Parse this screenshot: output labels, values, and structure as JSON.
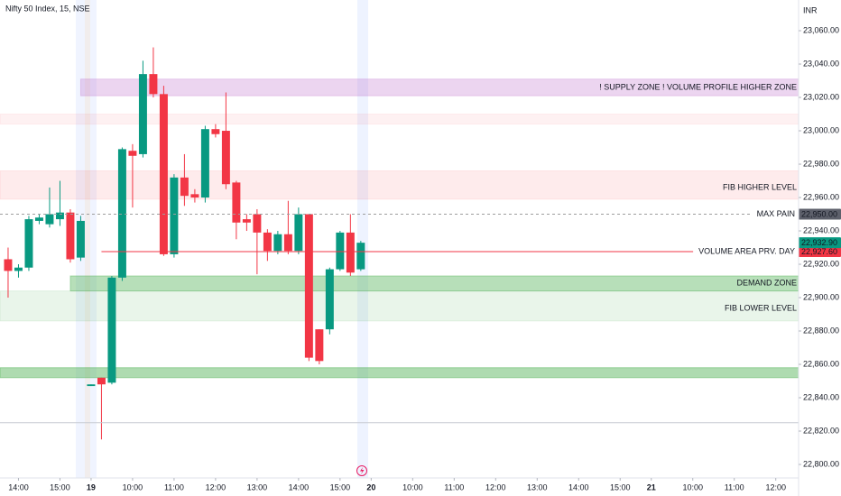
{
  "chart_data": {
    "type": "candlestick",
    "title": "Nifty 50 Index, 15, NSE",
    "currency": "INR",
    "up_color": "#089981",
    "down_color": "#f23645",
    "xlim": [
      -1.78,
      75.2
    ],
    "ylim": [
      22791.9,
      23078.4
    ],
    "xticks": [
      {
        "value": 0,
        "label": "14:00"
      },
      {
        "value": 4,
        "label": "15:00"
      },
      {
        "value": 7,
        "label": "19"
      },
      {
        "value": 11,
        "label": "10:00"
      },
      {
        "value": 15,
        "label": "11:00"
      },
      {
        "value": 19,
        "label": "12:00"
      },
      {
        "value": 23,
        "label": "13:00"
      },
      {
        "value": 27,
        "label": "14:00"
      },
      {
        "value": 31,
        "label": "15:00"
      },
      {
        "value": 34,
        "label": "20"
      },
      {
        "value": 38,
        "label": "10:00"
      },
      {
        "value": 42,
        "label": "11:00"
      },
      {
        "value": 46,
        "label": "12:00"
      },
      {
        "value": 50,
        "label": "13:00"
      },
      {
        "value": 54,
        "label": "14:00"
      },
      {
        "value": 58,
        "label": "15:00"
      },
      {
        "value": 61,
        "label": "21"
      },
      {
        "value": 65,
        "label": "10:00"
      },
      {
        "value": 69,
        "label": "11:00"
      },
      {
        "value": 73,
        "label": "12:00"
      }
    ],
    "yticks": [
      {
        "value": 22800,
        "label": "22,800.00"
      },
      {
        "value": 22820,
        "label": "22,820.00"
      },
      {
        "value": 22840,
        "label": "22,840.00"
      },
      {
        "value": 22860,
        "label": "22,860.00"
      },
      {
        "value": 22880,
        "label": "22,880.00"
      },
      {
        "value": 22900,
        "label": "22,900.00"
      },
      {
        "value": 22920,
        "label": "22,920.00"
      },
      {
        "value": 22940,
        "label": "22,940.00"
      },
      {
        "value": 22960,
        "label": "22,960.00"
      },
      {
        "value": 22980,
        "label": "22,980.00"
      },
      {
        "value": 23000,
        "label": "23,000.00"
      },
      {
        "value": 23020,
        "label": "23,020.00"
      },
      {
        "value": 23040,
        "label": "23,040.00"
      },
      {
        "value": 23060,
        "label": "23,060.00"
      }
    ],
    "x": [
      -1,
      0,
      1,
      2,
      3,
      4,
      5,
      6,
      7,
      8,
      9,
      10,
      11,
      12,
      13,
      14,
      15,
      16,
      17,
      18,
      19,
      20,
      21,
      22,
      23,
      24,
      25,
      26,
      27,
      28,
      29,
      30,
      31,
      32,
      33
    ],
    "open": [
      22923,
      22916,
      22918,
      22946,
      22944,
      22947,
      22951,
      22924,
      22847,
      22852,
      22849,
      22912,
      22988,
      22986,
      23034,
      23022,
      22926,
      22972,
      22962,
      22960,
      23001,
      23000,
      22969,
      22947,
      22950,
      22939,
      22928,
      22938,
      22928,
      22950,
      22881,
      22881,
      22917,
      22939,
      22917
    ],
    "high": [
      22930,
      22920,
      22949,
      22950,
      22966,
      22970,
      22953,
      22949,
      22848,
      22852,
      22913,
      22990,
      22992,
      23042,
      23050,
      23027,
      22974,
      22986,
      22965,
      23003,
      23004,
      23023,
      22970,
      22950,
      22953,
      22941,
      22940,
      22958,
      22954,
      22950,
      22881,
      22918,
      22940,
      22950,
      22934
    ],
    "low": [
      22900,
      22912,
      22916,
      22944,
      22942,
      22943,
      22921,
      22922,
      22847,
      22815,
      22848,
      22910,
      22954,
      22984,
      23020,
      22925,
      22924,
      22955,
      22957,
      22957,
      22996,
      22965,
      22935,
      22940,
      22914,
      22922,
      22926,
      22926,
      22926,
      22862,
      22860,
      22878,
      22916,
      22913,
      22916
    ],
    "close": [
      22916,
      22918,
      22947,
      22948,
      22950,
      22951,
      22923,
      22946,
      22848,
      22848,
      22912,
      22989,
      22985,
      23034,
      23022,
      22926,
      22972,
      22961,
      22960,
      23001,
      22998,
      22968,
      22945,
      22945,
      22939,
      22928,
      22938,
      22928,
      22950,
      22864,
      22862,
      22917,
      22939,
      22915,
      22932.9
    ],
    "last_price": {
      "value": 22932.9,
      "label": "22,932.90"
    },
    "zones": [
      {
        "label": "! SUPPLY ZONE ! VOLUME PROFILE HIGHER ZONE",
        "from": 23021,
        "to": 23031,
        "x_start": 6,
        "color": "rgba(186,104,200,0.28)",
        "label_color": "#f23645"
      },
      {
        "from": 23004,
        "to": 23010,
        "x_start": -1.78,
        "color": "rgba(242,54,69,0.07)",
        "label_color": "#131722"
      },
      {
        "label": "FIB HIGHER LEVEL",
        "from": 22959,
        "to": 22976,
        "x_start": -1.78,
        "color": "rgba(242,54,69,0.1)",
        "label_color": "#131722"
      },
      {
        "label": "DEMAND ZONE",
        "from": 22904,
        "to": 22913,
        "x_start": 5,
        "color": "rgba(76,175,80,0.4)",
        "label_color": "#131722"
      },
      {
        "label": "FIB LOWER LEVEL",
        "from": 22886,
        "to": 22904,
        "x_start": -1.78,
        "color": "rgba(76,175,80,0.12)",
        "label_color": "#131722"
      },
      {
        "from": 22852,
        "to": 22858,
        "x_start": -1.78,
        "color": "rgba(76,175,80,0.45)",
        "label_color": "#131722"
      }
    ],
    "lines": [
      {
        "label": "MAX PAIN",
        "value": 22950,
        "price_label": "22,950.00",
        "x_start": -1.78,
        "color": "#9e9e9e",
        "label_color": "#787b86",
        "dashed": true
      },
      {
        "label": "VOLUME AREA PRV. DAY",
        "value": 22927.6,
        "price_label": "22,927.60",
        "x_start": 8,
        "color": "#f23645",
        "label_color": "#43a047",
        "dashed": false
      },
      {
        "value": 22825,
        "x_start": -1.78,
        "color": "#c8cbd3",
        "dashed": false
      }
    ]
  }
}
